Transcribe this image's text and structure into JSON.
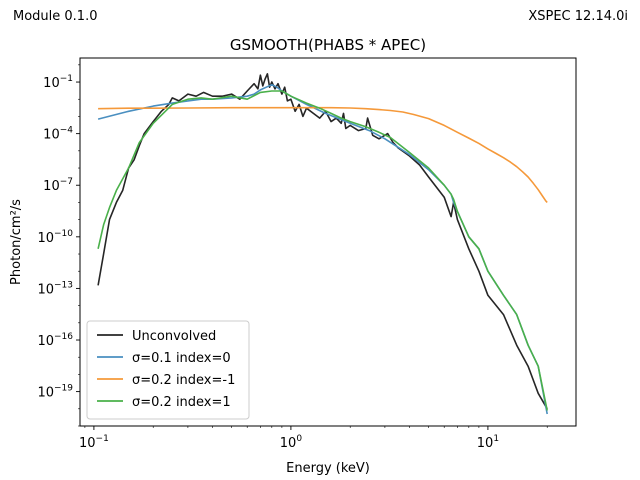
{
  "header": {
    "left_text": "Module 0.1.0",
    "right_text": "XSPEC 12.14.0i"
  },
  "chart_data": {
    "type": "line",
    "title": "GSMOOTH(PHABS * APEC)",
    "xlabel": "Energy (keV)",
    "ylabel": "Photon/cm²/s",
    "xscale": "log",
    "yscale": "log",
    "xlim": [
      0.085,
      28
    ],
    "ylim": [
      1e-21,
      2.5
    ],
    "x_ticks": [
      {
        "value": 0.1,
        "base": "10",
        "exp": "−1"
      },
      {
        "value": 1,
        "base": "10",
        "exp": "0"
      },
      {
        "value": 10,
        "base": "10",
        "exp": "1"
      }
    ],
    "y_ticks": [
      {
        "value": 0.1,
        "base": "10",
        "exp": "−1"
      },
      {
        "value": 0.0001,
        "base": "10",
        "exp": "−4"
      },
      {
        "value": 1e-07,
        "base": "10",
        "exp": "−7"
      },
      {
        "value": 1e-10,
        "base": "10",
        "exp": "−10"
      },
      {
        "value": 1e-13,
        "base": "10",
        "exp": "−13"
      },
      {
        "value": 1e-16,
        "base": "10",
        "exp": "−16"
      },
      {
        "value": 1e-19,
        "base": "10",
        "exp": "−19"
      }
    ],
    "grid": false,
    "legend_position": "lower-left",
    "series": [
      {
        "name": "Unconvolved",
        "color": "#262626",
        "x": [
          0.105,
          0.112,
          0.12,
          0.13,
          0.14,
          0.15,
          0.16,
          0.17,
          0.18,
          0.2,
          0.22,
          0.24,
          0.25,
          0.27,
          0.3,
          0.33,
          0.36,
          0.4,
          0.45,
          0.5,
          0.55,
          0.6,
          0.65,
          0.68,
          0.7,
          0.72,
          0.74,
          0.76,
          0.78,
          0.8,
          0.83,
          0.86,
          0.9,
          0.93,
          0.96,
          1.0,
          1.05,
          1.1,
          1.15,
          1.2,
          1.3,
          1.4,
          1.5,
          1.6,
          1.7,
          1.8,
          1.85,
          1.9,
          2.0,
          2.2,
          2.4,
          2.45,
          2.6,
          2.8,
          3.1,
          3.3,
          3.5,
          4.0,
          4.5,
          5.0,
          6.0,
          6.5,
          6.7,
          7.0,
          8.0,
          9.0,
          10.0,
          12.0,
          14.0,
          16.0,
          18.0,
          20.0
        ],
        "y": [
          1.5e-13,
          1e-11,
          1e-09,
          1e-08,
          5e-08,
          1e-06,
          3e-06,
          2e-05,
          0.0001,
          0.0005,
          0.002,
          0.005,
          0.012,
          0.008,
          0.02,
          0.015,
          0.025,
          0.015,
          0.015,
          0.02,
          0.01,
          0.03,
          0.08,
          0.04,
          0.25,
          0.06,
          0.15,
          0.3,
          0.05,
          0.1,
          0.04,
          0.08,
          0.02,
          0.05,
          0.008,
          0.01,
          0.002,
          0.005,
          0.001,
          0.003,
          0.0015,
          0.0008,
          0.002,
          0.0005,
          0.0008,
          0.0004,
          0.0015,
          0.0002,
          0.0003,
          0.00015,
          0.0002,
          0.0008,
          8e-05,
          5e-05,
          0.0001,
          3e-05,
          1.5e-05,
          5e-06,
          1.5e-06,
          3e-07,
          2e-08,
          1.5e-09,
          1e-08,
          1e-09,
          2e-11,
          1e-12,
          4e-14,
          3e-15,
          5e-17,
          3e-18,
          8e-20,
          1e-20
        ]
      },
      {
        "name": "σ=0.1 index=0",
        "color": "#4a8fc0",
        "x": [
          0.105,
          0.15,
          0.2,
          0.25,
          0.3,
          0.35,
          0.4,
          0.5,
          0.6,
          0.65,
          0.7,
          0.75,
          0.8,
          0.85,
          0.9,
          1.0,
          1.2,
          1.5,
          2.0,
          2.5,
          3.0,
          4.0,
          5.0,
          6.0,
          6.5,
          6.7,
          7.0,
          8.0,
          9.0,
          10.0,
          12.0,
          14.0,
          16.0,
          18.0,
          20.0
        ],
        "y": [
          0.0007,
          0.002,
          0.004,
          0.006,
          0.008,
          0.01,
          0.01,
          0.012,
          0.015,
          0.02,
          0.035,
          0.05,
          0.07,
          0.05,
          0.03,
          0.015,
          0.005,
          0.0015,
          0.0004,
          0.00015,
          5e-05,
          6e-06,
          8e-07,
          1e-07,
          3e-08,
          1e-08,
          3e-09,
          1e-10,
          2e-11,
          1e-12,
          4e-14,
          3e-15,
          5e-17,
          3e-18,
          5e-21
        ]
      },
      {
        "name": "σ=0.2 index=-1",
        "color": "#f5993a",
        "x": [
          0.105,
          0.15,
          0.2,
          0.3,
          0.5,
          0.7,
          1.0,
          1.3,
          1.6,
          2.0,
          2.4,
          2.8,
          3.2,
          3.7,
          4.2,
          5.0,
          6.0,
          7.0,
          8.0,
          9.0,
          10.0,
          11.0,
          12.0,
          13.0,
          14.0,
          15.0,
          16.0,
          17.0,
          18.0,
          19.0,
          19.7,
          20.0
        ],
        "y": [
          0.0028,
          0.003,
          0.003,
          0.0031,
          0.0032,
          0.0032,
          0.0032,
          0.0032,
          0.0032,
          0.0031,
          0.0028,
          0.0025,
          0.0022,
          0.0018,
          0.0013,
          0.00075,
          0.0003,
          0.00012,
          5.5e-05,
          2.7e-05,
          1.3e-05,
          7e-06,
          4e-06,
          2.2e-06,
          1.2e-06,
          6e-07,
          3e-07,
          1.3e-07,
          5.5e-08,
          2.2e-08,
          1.2e-08,
          1e-08
        ]
      },
      {
        "name": "σ=0.2 index=1",
        "color": "#4ab04a",
        "x": [
          0.105,
          0.112,
          0.12,
          0.13,
          0.15,
          0.17,
          0.2,
          0.25,
          0.3,
          0.35,
          0.4,
          0.5,
          0.6,
          0.7,
          0.8,
          0.9,
          1.0,
          1.2,
          1.4,
          1.6,
          1.8,
          2.0,
          2.4,
          2.8,
          3.2,
          4.0,
          5.0,
          6.0,
          6.5,
          6.7,
          7.0,
          8.0,
          9.0,
          10.0,
          12.0,
          14.0,
          16.0,
          18.0,
          20.0
        ],
        "y": [
          2e-11,
          5e-10,
          5e-09,
          5e-08,
          1e-06,
          3e-05,
          0.0004,
          0.005,
          0.01,
          0.012,
          0.01,
          0.015,
          0.01,
          0.025,
          0.03,
          0.03,
          0.015,
          0.006,
          0.003,
          0.0015,
          0.0008,
          0.0005,
          0.00025,
          0.00012,
          6e-05,
          8e-06,
          1e-06,
          1e-07,
          3e-08,
          1.5e-08,
          3e-09,
          1e-10,
          2e-11,
          1e-12,
          4e-14,
          3e-15,
          5e-17,
          3e-18,
          8e-21
        ]
      }
    ]
  }
}
